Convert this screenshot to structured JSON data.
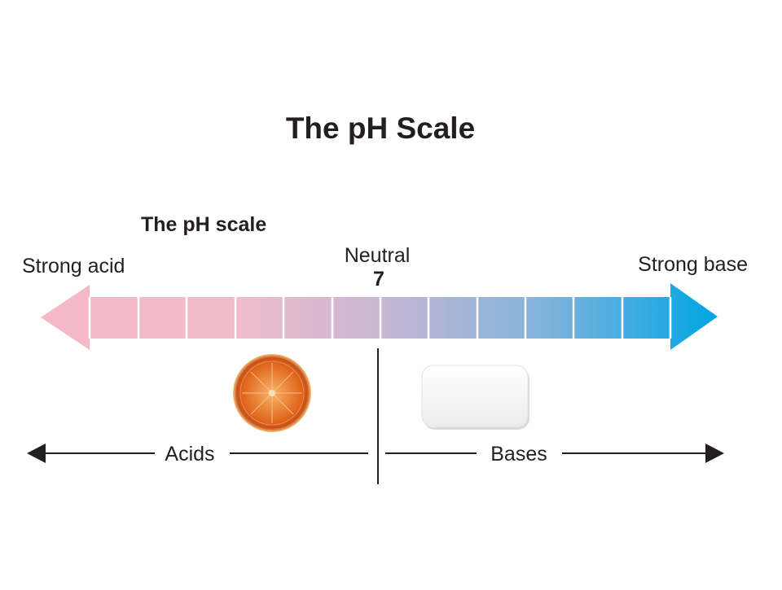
{
  "title": "The pH Scale",
  "diagram": {
    "subtitle": "The pH scale",
    "left_label": "Strong acid",
    "neutral_label": "Neutral",
    "neutral_value": 7,
    "right_label": "Strong base",
    "acids_label": "Acids",
    "bases_label": "Bases"
  }
}
